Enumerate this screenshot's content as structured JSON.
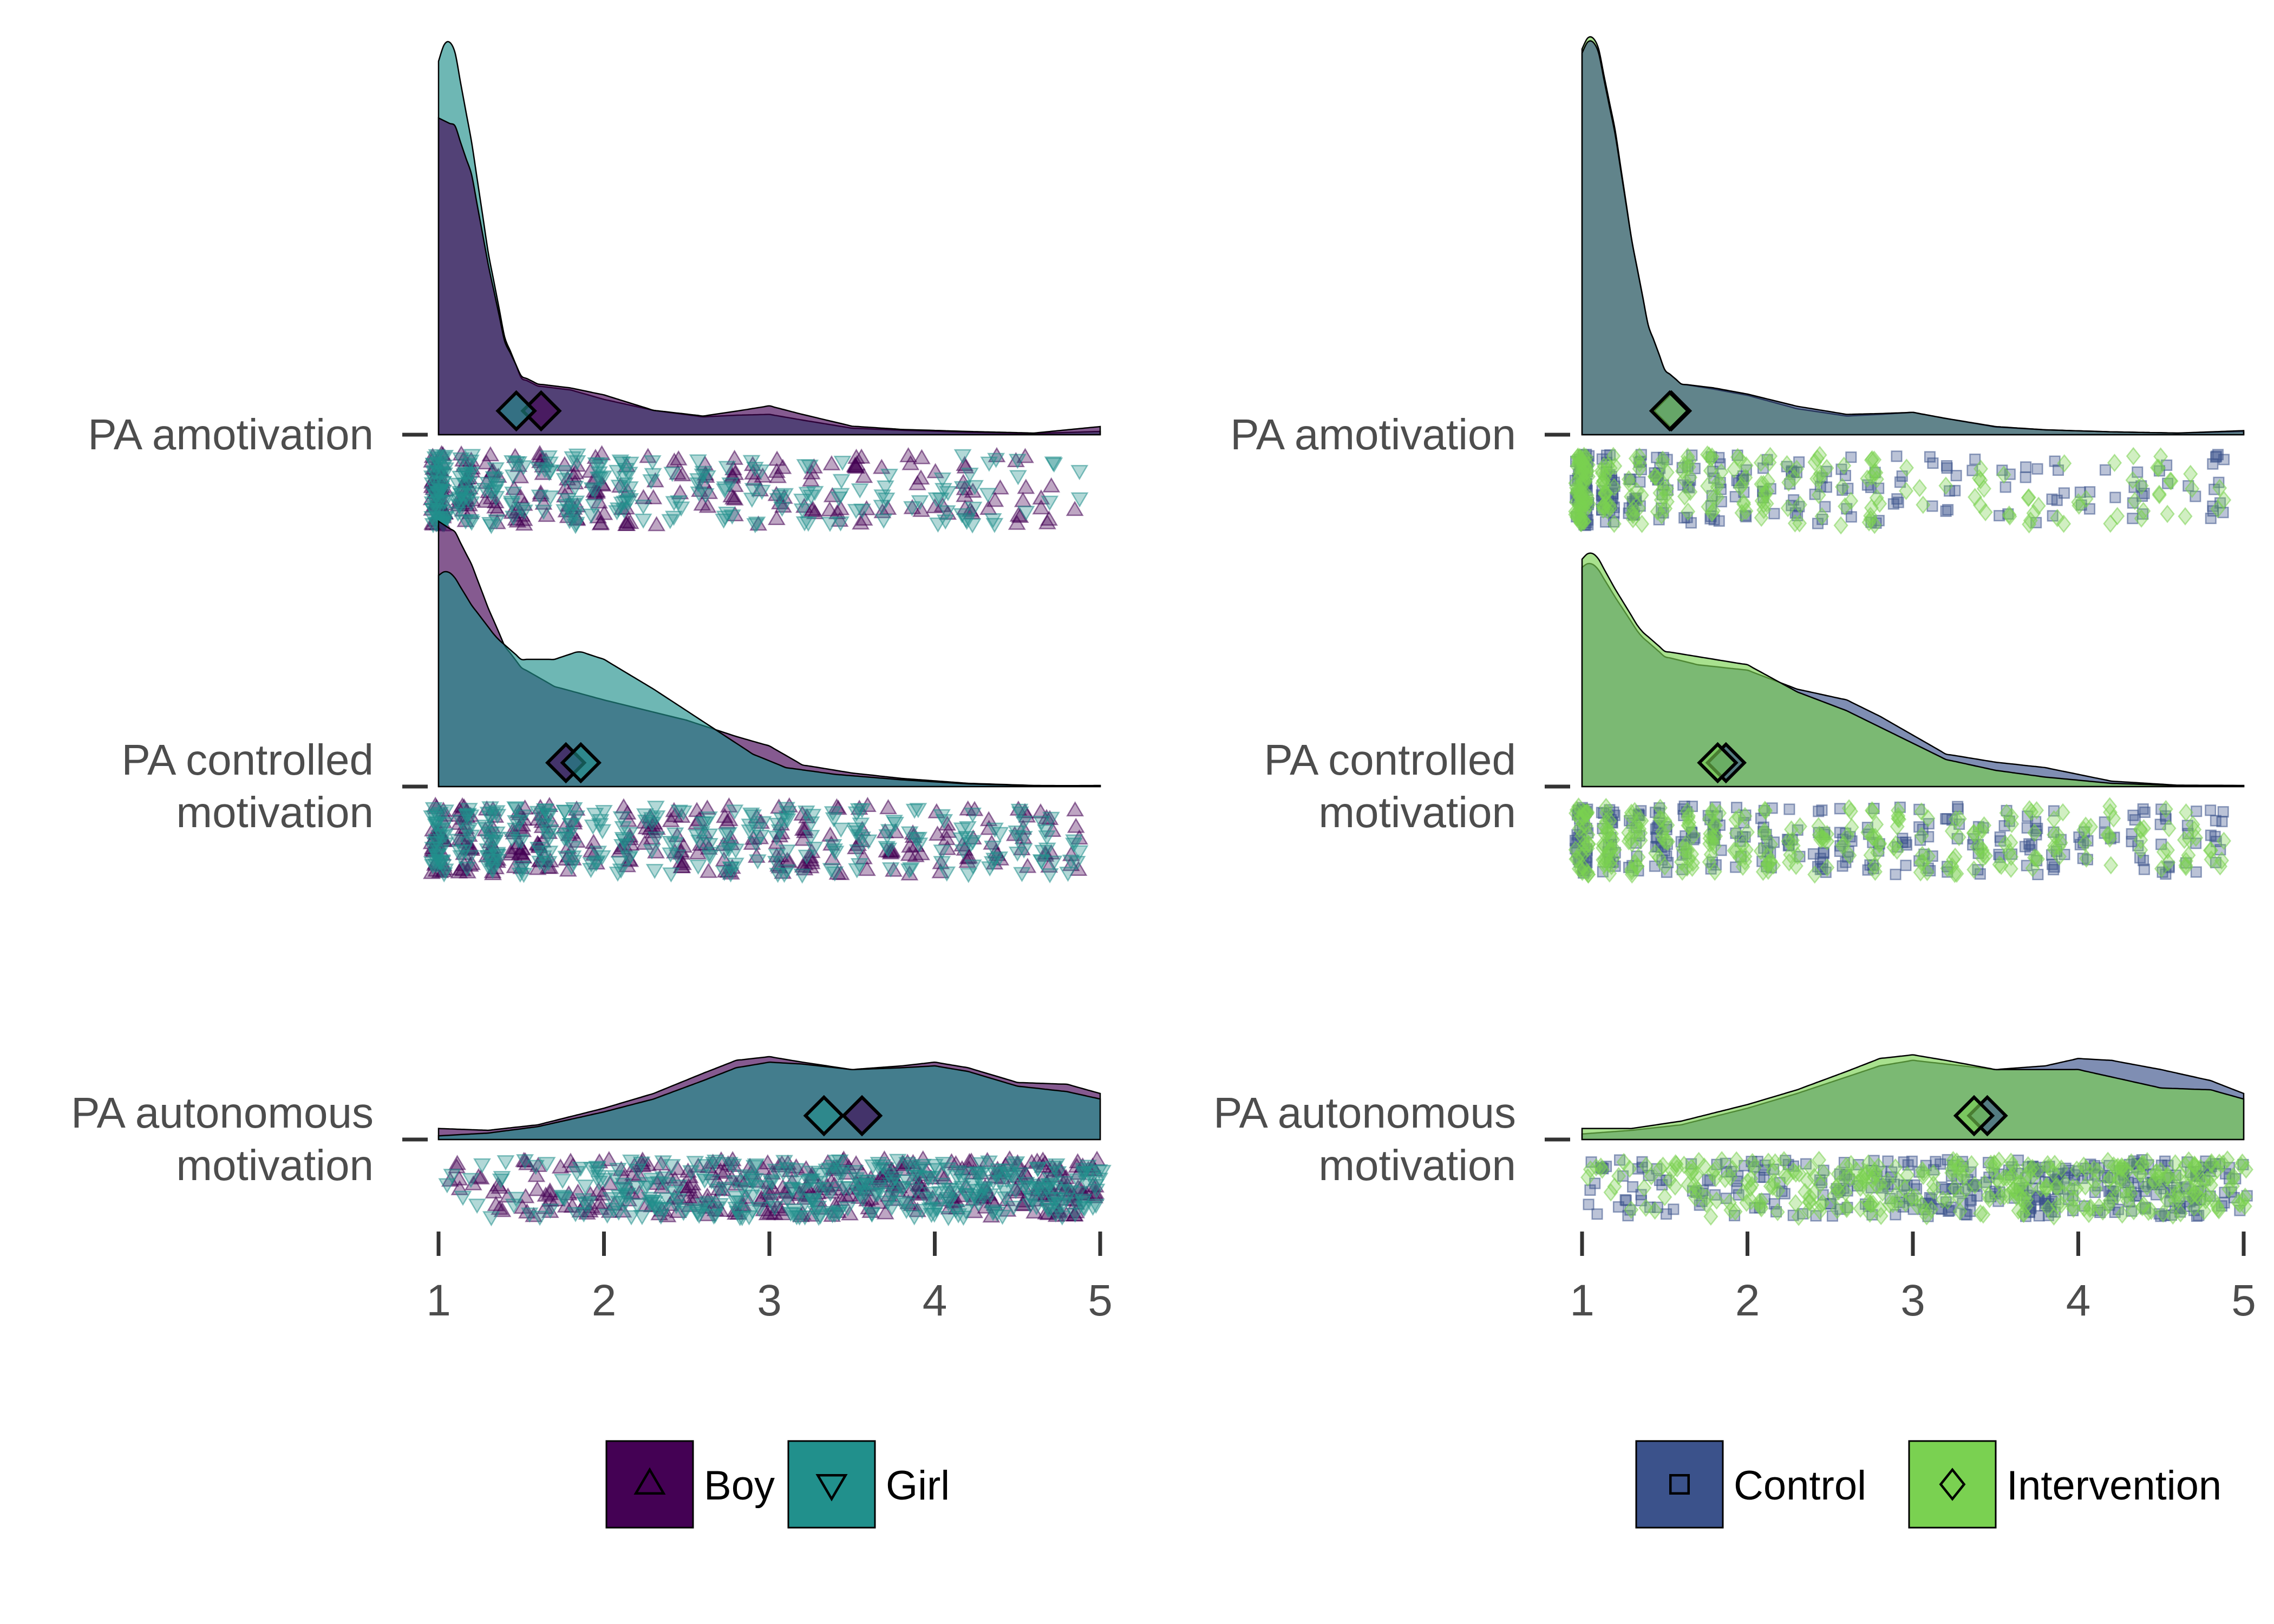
{
  "chart_data": [
    {
      "type": "raincloud",
      "panel": "left",
      "x_ticks": [
        1,
        2,
        3,
        4,
        5
      ],
      "xlim": [
        1,
        5
      ],
      "grid": false,
      "legend_position": "bottom",
      "rows": [
        {
          "label_lines": [
            "PA amotivation"
          ],
          "densities": [
            {
              "group": "Boy",
              "x": [
                1.0,
                1.1,
                1.2,
                1.3,
                1.4,
                1.5,
                1.6,
                1.8,
                2.0,
                2.3,
                2.6,
                2.8,
                3.0,
                3.2,
                3.5,
                3.8,
                4.2,
                4.6,
                5.0
              ],
              "y": [
                0.78,
                0.76,
                0.64,
                0.42,
                0.23,
                0.145,
                0.125,
                0.115,
                0.098,
                0.06,
                0.046,
                0.058,
                0.071,
                0.05,
                0.021,
                0.013,
                0.008,
                0.004,
                0.02
              ]
            },
            {
              "group": "Girl",
              "x": [
                1.0,
                1.05,
                1.1,
                1.2,
                1.3,
                1.4,
                1.5,
                1.6,
                1.8,
                2.0,
                2.3,
                2.6,
                2.8,
                3.0,
                3.2,
                3.5,
                3.8,
                4.2,
                4.6,
                5.0
              ],
              "y": [
                0.92,
                0.98,
                0.94,
                0.72,
                0.45,
                0.24,
                0.14,
                0.12,
                0.11,
                0.087,
                0.06,
                0.044,
                0.048,
                0.05,
                0.036,
                0.016,
                0.011,
                0.006,
                0.003,
                0.008
              ]
            }
          ],
          "means": [
            {
              "group": "Boy",
              "value": 1.62
            },
            {
              "group": "Girl",
              "value": 1.47
            }
          ]
        },
        {
          "label_lines": [
            "PA controlled",
            "motivation"
          ],
          "densities": [
            {
              "group": "Boy",
              "x": [
                1.0,
                1.1,
                1.2,
                1.3,
                1.4,
                1.5,
                1.7,
                2.0,
                2.2,
                2.5,
                2.8,
                3.0,
                3.2,
                3.5,
                3.8,
                4.2,
                4.6,
                5.0
              ],
              "y": [
                0.98,
                0.94,
                0.82,
                0.66,
                0.52,
                0.44,
                0.37,
                0.32,
                0.29,
                0.245,
                0.185,
                0.15,
                0.08,
                0.05,
                0.03,
                0.012,
                0.004,
                0.003
              ]
            },
            {
              "group": "Girl",
              "x": [
                1.0,
                1.05,
                1.1,
                1.2,
                1.35,
                1.5,
                1.7,
                1.85,
                2.0,
                2.3,
                2.6,
                2.9,
                3.1,
                3.4,
                3.8,
                4.2,
                4.6,
                5.0
              ],
              "y": [
                0.78,
                0.8,
                0.77,
                0.67,
                0.55,
                0.47,
                0.47,
                0.5,
                0.47,
                0.36,
                0.24,
                0.12,
                0.07,
                0.045,
                0.025,
                0.01,
                0.003,
                0.004
              ]
            }
          ],
          "means": [
            {
              "group": "Boy",
              "value": 1.77
            },
            {
              "group": "Girl",
              "value": 1.86
            }
          ]
        },
        {
          "label_lines": [
            "PA autonomous",
            "motivation"
          ],
          "densities": [
            {
              "group": "Boy",
              "x": [
                1.0,
                1.3,
                1.6,
                2.0,
                2.3,
                2.6,
                2.8,
                3.0,
                3.2,
                3.5,
                3.8,
                4.0,
                4.2,
                4.5,
                4.8,
                5.0
              ],
              "y": [
                0.06,
                0.05,
                0.08,
                0.17,
                0.25,
                0.36,
                0.43,
                0.45,
                0.42,
                0.38,
                0.4,
                0.42,
                0.39,
                0.31,
                0.3,
                0.25
              ]
            },
            {
              "group": "Girl",
              "x": [
                1.0,
                1.3,
                1.6,
                2.0,
                2.3,
                2.6,
                2.8,
                3.0,
                3.2,
                3.5,
                3.8,
                4.0,
                4.2,
                4.5,
                4.8,
                5.0
              ],
              "y": [
                0.02,
                0.035,
                0.07,
                0.15,
                0.22,
                0.32,
                0.39,
                0.42,
                0.41,
                0.38,
                0.39,
                0.4,
                0.37,
                0.29,
                0.26,
                0.22
              ]
            }
          ],
          "means": [
            {
              "group": "Boy",
              "value": 3.56
            },
            {
              "group": "Girl",
              "value": 3.33
            }
          ]
        }
      ],
      "legend": [
        {
          "label": "Boy",
          "color": "#440154",
          "shape": "triangle-up"
        },
        {
          "label": "Girl",
          "color": "#21908C",
          "shape": "triangle-down"
        }
      ]
    },
    {
      "type": "raincloud",
      "panel": "right",
      "x_ticks": [
        1,
        2,
        3,
        4,
        5
      ],
      "xlim": [
        1,
        5
      ],
      "grid": false,
      "legend_position": "bottom",
      "rows": [
        {
          "label_lines": [
            "PA amotivation"
          ],
          "densities": [
            {
              "group": "Control",
              "x": [
                1.0,
                1.05,
                1.1,
                1.2,
                1.3,
                1.4,
                1.5,
                1.6,
                1.8,
                2.0,
                2.3,
                2.6,
                2.8,
                3.0,
                3.2,
                3.5,
                3.8,
                4.2,
                4.6,
                5.0
              ],
              "y": [
                0.94,
                0.98,
                0.94,
                0.74,
                0.48,
                0.27,
                0.16,
                0.125,
                0.115,
                0.1,
                0.07,
                0.05,
                0.052,
                0.055,
                0.04,
                0.02,
                0.012,
                0.007,
                0.004,
                0.01
              ]
            },
            {
              "group": "Intervention",
              "x": [
                1.0,
                1.05,
                1.1,
                1.2,
                1.3,
                1.4,
                1.5,
                1.6,
                1.8,
                2.0,
                2.3,
                2.6,
                2.8,
                3.0,
                3.2,
                3.5,
                3.8,
                4.2,
                4.6,
                5.0
              ],
              "y": [
                0.95,
                0.99,
                0.95,
                0.75,
                0.48,
                0.27,
                0.16,
                0.125,
                0.112,
                0.097,
                0.064,
                0.046,
                0.05,
                0.055,
                0.04,
                0.019,
                0.012,
                0.007,
                0.004,
                0.008
              ]
            }
          ],
          "means": [
            {
              "group": "Control",
              "value": 1.54
            },
            {
              "group": "Intervention",
              "value": 1.53
            }
          ]
        },
        {
          "label_lines": [
            "PA controlled",
            "motivation"
          ],
          "densities": [
            {
              "group": "Control",
              "x": [
                1.0,
                1.05,
                1.1,
                1.2,
                1.35,
                1.5,
                1.7,
                2.0,
                2.3,
                2.6,
                2.8,
                3.0,
                3.2,
                3.5,
                3.8,
                4.2,
                4.6,
                5.0
              ],
              "y": [
                0.81,
                0.83,
                0.8,
                0.7,
                0.56,
                0.48,
                0.45,
                0.43,
                0.36,
                0.32,
                0.26,
                0.19,
                0.12,
                0.09,
                0.07,
                0.02,
                0.005,
                0.004
              ]
            },
            {
              "group": "Intervention",
              "x": [
                1.0,
                1.05,
                1.1,
                1.2,
                1.35,
                1.5,
                1.7,
                2.0,
                2.3,
                2.6,
                2.8,
                3.0,
                3.2,
                3.5,
                3.8,
                4.2,
                4.6,
                5.0
              ],
              "y": [
                0.84,
                0.87,
                0.84,
                0.73,
                0.58,
                0.5,
                0.48,
                0.45,
                0.35,
                0.28,
                0.22,
                0.16,
                0.1,
                0.06,
                0.035,
                0.012,
                0.004,
                0.003
              ]
            }
          ],
          "means": [
            {
              "group": "Control",
              "value": 1.87
            },
            {
              "group": "Intervention",
              "value": 1.82
            }
          ]
        },
        {
          "label_lines": [
            "PA autonomous",
            "motivation"
          ],
          "densities": [
            {
              "group": "Control",
              "x": [
                1.0,
                1.3,
                1.6,
                2.0,
                2.3,
                2.6,
                2.8,
                3.0,
                3.2,
                3.5,
                3.8,
                4.0,
                4.2,
                4.5,
                4.8,
                5.0
              ],
              "y": [
                0.03,
                0.05,
                0.08,
                0.17,
                0.25,
                0.34,
                0.4,
                0.43,
                0.41,
                0.38,
                0.4,
                0.44,
                0.43,
                0.38,
                0.32,
                0.25
              ]
            },
            {
              "group": "Intervention",
              "x": [
                1.0,
                1.3,
                1.6,
                2.0,
                2.3,
                2.6,
                2.8,
                3.0,
                3.2,
                3.5,
                3.8,
                4.0,
                4.2,
                4.5,
                4.8,
                5.0
              ],
              "y": [
                0.06,
                0.06,
                0.1,
                0.19,
                0.27,
                0.37,
                0.44,
                0.46,
                0.43,
                0.38,
                0.38,
                0.38,
                0.34,
                0.28,
                0.27,
                0.22
              ]
            }
          ],
          "means": [
            {
              "group": "Control",
              "value": 3.45
            },
            {
              "group": "Intervention",
              "value": 3.37
            }
          ]
        }
      ],
      "legend": [
        {
          "label": "Control",
          "color": "#3B528B",
          "shape": "square"
        },
        {
          "label": "Intervention",
          "color": "#7AD151",
          "shape": "diamond"
        }
      ]
    }
  ],
  "colors": {
    "text": "#4d4d4d",
    "axis": "#333333",
    "outline": "#000000"
  }
}
